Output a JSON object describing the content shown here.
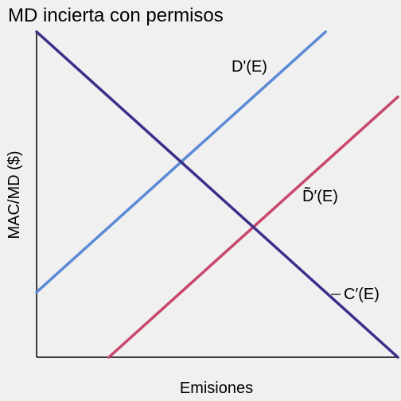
{
  "chart_data": {
    "type": "line",
    "title": "MD incierta con permisos",
    "xlabel": "Emisiones",
    "ylabel": "MAC/MD ($)",
    "xlim": [
      0,
      100
    ],
    "ylim": [
      0,
      100
    ],
    "grid": false,
    "legend": "none",
    "series": [
      {
        "name": "D'(E)",
        "color": "#5b8ad6",
        "points": [
          [
            0,
            20
          ],
          [
            80,
            100
          ]
        ]
      },
      {
        "name": "D̃′(E)",
        "color": "#c8476a",
        "points": [
          [
            20,
            0
          ],
          [
            100,
            80
          ]
        ]
      },
      {
        "name": "C′(E)",
        "color": "#3c2f8a",
        "points": [
          [
            0,
            100
          ],
          [
            100,
            0
          ]
        ]
      }
    ]
  }
}
